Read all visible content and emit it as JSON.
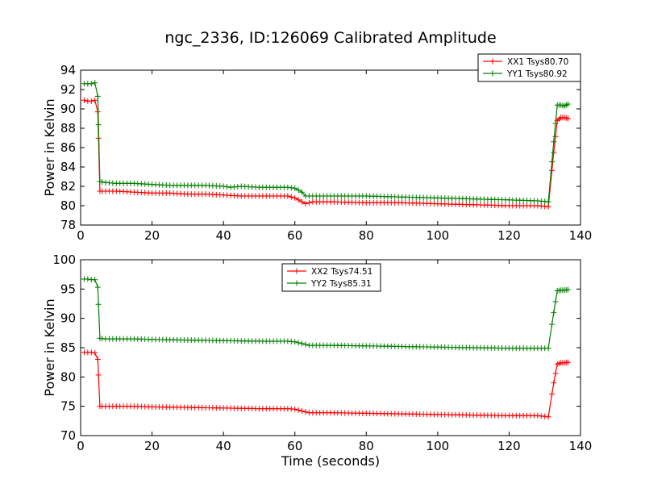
{
  "chart_data": [
    {
      "type": "line",
      "title": "ngc_2336, ID:126069 Calibrated Amplitude",
      "xlabel": "",
      "ylabel": "Power in Kelvin",
      "xlim": [
        0,
        140
      ],
      "ylim": [
        78,
        94
      ],
      "xticks": [
        "0",
        "20",
        "40",
        "60",
        "80",
        "100",
        "120",
        "140"
      ],
      "yticks": [
        "78",
        "80",
        "82",
        "84",
        "86",
        "88",
        "90",
        "92",
        "94"
      ],
      "grid": false,
      "legend_position": "top-right",
      "series": [
        {
          "name": "XX1 Tsys80.70",
          "color": "#ff0000",
          "points": [
            [
              1,
              90.9
            ],
            [
              2,
              90.8
            ],
            [
              3,
              90.8
            ],
            [
              4,
              90.9
            ],
            [
              4.8,
              89.7
            ],
            [
              5.4,
              81.5
            ],
            [
              7,
              81.5
            ],
            [
              10,
              81.5
            ],
            [
              15,
              81.4
            ],
            [
              20,
              81.3
            ],
            [
              25,
              81.3
            ],
            [
              30,
              81.2
            ],
            [
              35,
              81.2
            ],
            [
              40,
              81.1
            ],
            [
              45,
              81.0
            ],
            [
              50,
              81.0
            ],
            [
              55,
              81.0
            ],
            [
              58,
              81.0
            ],
            [
              60,
              80.8
            ],
            [
              62,
              80.4
            ],
            [
              63,
              80.2
            ],
            [
              65,
              80.4
            ],
            [
              70,
              80.4
            ],
            [
              80,
              80.3
            ],
            [
              90,
              80.3
            ],
            [
              100,
              80.2
            ],
            [
              110,
              80.1
            ],
            [
              120,
              80.0
            ],
            [
              128,
              80.0
            ],
            [
              131,
              79.9
            ],
            [
              132.5,
              85.5
            ],
            [
              133.5,
              88.8
            ],
            [
              134.5,
              89.1
            ],
            [
              135.5,
              89.1
            ],
            [
              136.5,
              89.0
            ]
          ]
        },
        {
          "name": "YY1 Tsys80.92",
          "color": "#008000",
          "points": [
            [
              1,
              92.6
            ],
            [
              2,
              92.6
            ],
            [
              3,
              92.6
            ],
            [
              4,
              92.7
            ],
            [
              4.8,
              91.3
            ],
            [
              5.4,
              82.5
            ],
            [
              7,
              82.4
            ],
            [
              10,
              82.3
            ],
            [
              15,
              82.3
            ],
            [
              20,
              82.2
            ],
            [
              25,
              82.1
            ],
            [
              30,
              82.1
            ],
            [
              35,
              82.1
            ],
            [
              40,
              82.0
            ],
            [
              42,
              81.9
            ],
            [
              45,
              82.0
            ],
            [
              50,
              81.9
            ],
            [
              55,
              81.9
            ],
            [
              58,
              81.9
            ],
            [
              60,
              81.8
            ],
            [
              62,
              81.4
            ],
            [
              63,
              81.0
            ],
            [
              65,
              81.0
            ],
            [
              70,
              81.0
            ],
            [
              80,
              81.0
            ],
            [
              90,
              80.9
            ],
            [
              100,
              80.8
            ],
            [
              110,
              80.7
            ],
            [
              120,
              80.6
            ],
            [
              128,
              80.5
            ],
            [
              131,
              80.4
            ],
            [
              132.5,
              86.6
            ],
            [
              133.5,
              90.4
            ],
            [
              134.5,
              90.4
            ],
            [
              135.5,
              90.3
            ],
            [
              136.5,
              90.5
            ]
          ]
        }
      ]
    },
    {
      "type": "line",
      "title": "",
      "xlabel": "Time (seconds)",
      "ylabel": "Power in Kelvin",
      "xlim": [
        0,
        140
      ],
      "ylim": [
        70,
        100
      ],
      "xticks": [
        "0",
        "20",
        "40",
        "60",
        "80",
        "100",
        "120",
        "140"
      ],
      "yticks": [
        "70",
        "75",
        "80",
        "85",
        "90",
        "95",
        "100"
      ],
      "grid": false,
      "legend_position": "top-center",
      "series": [
        {
          "name": "XX2 Tsys74.51",
          "color": "#ff0000",
          "points": [
            [
              1,
              84.2
            ],
            [
              2,
              84.2
            ],
            [
              3,
              84.2
            ],
            [
              4,
              84.1
            ],
            [
              4.8,
              83.0
            ],
            [
              5.4,
              75.0
            ],
            [
              7,
              75.0
            ],
            [
              10,
              75.0
            ],
            [
              15,
              75.0
            ],
            [
              20,
              74.9
            ],
            [
              30,
              74.8
            ],
            [
              40,
              74.7
            ],
            [
              50,
              74.6
            ],
            [
              58,
              74.6
            ],
            [
              60,
              74.5
            ],
            [
              62,
              74.2
            ],
            [
              64,
              73.9
            ],
            [
              70,
              73.9
            ],
            [
              80,
              73.8
            ],
            [
              90,
              73.7
            ],
            [
              100,
              73.6
            ],
            [
              110,
              73.5
            ],
            [
              120,
              73.4
            ],
            [
              128,
              73.4
            ],
            [
              131,
              73.2
            ],
            [
              132.5,
              79.0
            ],
            [
              133.5,
              82.2
            ],
            [
              134.5,
              82.4
            ],
            [
              135.5,
              82.4
            ],
            [
              136.5,
              82.5
            ]
          ]
        },
        {
          "name": "YY2 Tsys85.31",
          "color": "#008000",
          "points": [
            [
              1,
              96.7
            ],
            [
              2,
              96.7
            ],
            [
              3,
              96.6
            ],
            [
              4,
              96.6
            ],
            [
              4.8,
              95.3
            ],
            [
              5.4,
              86.6
            ],
            [
              7,
              86.5
            ],
            [
              10,
              86.5
            ],
            [
              15,
              86.5
            ],
            [
              20,
              86.4
            ],
            [
              30,
              86.3
            ],
            [
              40,
              86.2
            ],
            [
              50,
              86.1
            ],
            [
              58,
              86.1
            ],
            [
              60,
              86.0
            ],
            [
              62,
              85.7
            ],
            [
              64,
              85.4
            ],
            [
              70,
              85.4
            ],
            [
              80,
              85.3
            ],
            [
              90,
              85.2
            ],
            [
              100,
              85.1
            ],
            [
              110,
              85.0
            ],
            [
              120,
              84.9
            ],
            [
              128,
              84.9
            ],
            [
              131,
              84.9
            ],
            [
              132.5,
              91.0
            ],
            [
              133.5,
              94.7
            ],
            [
              134.5,
              94.8
            ],
            [
              135.5,
              94.8
            ],
            [
              136.5,
              94.9
            ]
          ]
        }
      ]
    }
  ]
}
